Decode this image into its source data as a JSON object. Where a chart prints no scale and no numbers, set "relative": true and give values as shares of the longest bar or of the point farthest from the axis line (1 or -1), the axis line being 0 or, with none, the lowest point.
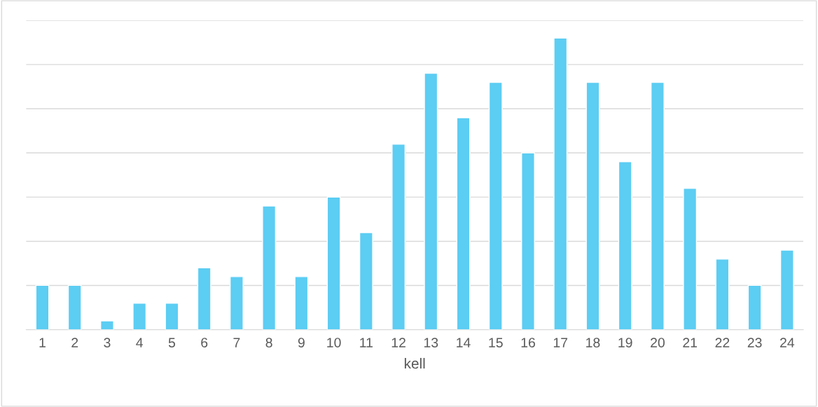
{
  "chart_data": {
    "type": "bar",
    "xlabel": "kell",
    "relative": true,
    "grid": "y",
    "legend": false,
    "color": "#5ccdf3",
    "categories": [
      "1",
      "2",
      "3",
      "4",
      "5",
      "6",
      "7",
      "8",
      "9",
      "10",
      "11",
      "12",
      "13",
      "14",
      "15",
      "16",
      "17",
      "18",
      "19",
      "20",
      "21",
      "22",
      "23",
      "24"
    ],
    "values": [
      0.152,
      0.152,
      0.03,
      0.091,
      0.091,
      0.212,
      0.182,
      0.424,
      0.182,
      0.455,
      0.333,
      0.636,
      0.879,
      0.727,
      0.848,
      0.606,
      1.0,
      0.848,
      0.576,
      0.848,
      0.485,
      0.242,
      0.152,
      0.273
    ]
  }
}
